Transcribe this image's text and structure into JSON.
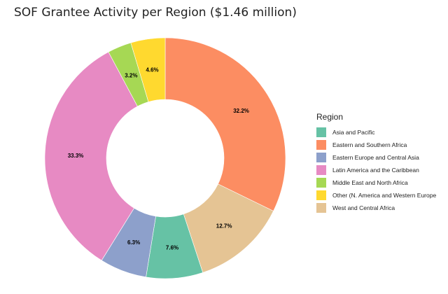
{
  "chart_data": {
    "type": "pie",
    "variant": "donut",
    "title": "SOF Grantee Activity per Region ($1.46 million)",
    "legend_title": "Region",
    "legend_position": "right",
    "start_angle_deg": 0,
    "direction": "clockwise",
    "slices": [
      {
        "name": "Eastern and Southern Africa",
        "value": 32.2,
        "label": "32.2%",
        "color": "#FC8D62"
      },
      {
        "name": "West and Central Africa",
        "value": 12.7,
        "label": "12.7%",
        "color": "#E5C494"
      },
      {
        "name": "Asia and Pacific",
        "value": 7.6,
        "label": "7.6%",
        "color": "#66C2A5"
      },
      {
        "name": "Eastern Europe and Central Asia",
        "value": 6.3,
        "label": "6.3%",
        "color": "#8DA0CB"
      },
      {
        "name": "Latin America and the Caribbean",
        "value": 33.3,
        "label": "33.3%",
        "color": "#E78AC3"
      },
      {
        "name": "Middle East and North Africa",
        "value": 3.2,
        "label": "3.2%",
        "color": "#A6D854"
      },
      {
        "name": "Other (N. America and Western Europe",
        "value": 4.6,
        "label": "4.6%",
        "color": "#FFD92F"
      }
    ],
    "legend_order": [
      "Asia and Pacific",
      "Eastern and Southern Africa",
      "Eastern Europe and Central Asia",
      "Latin America and the Caribbean",
      "Middle East and North Africa",
      "Other (N. America and Western Europe",
      "West and Central Africa"
    ]
  }
}
